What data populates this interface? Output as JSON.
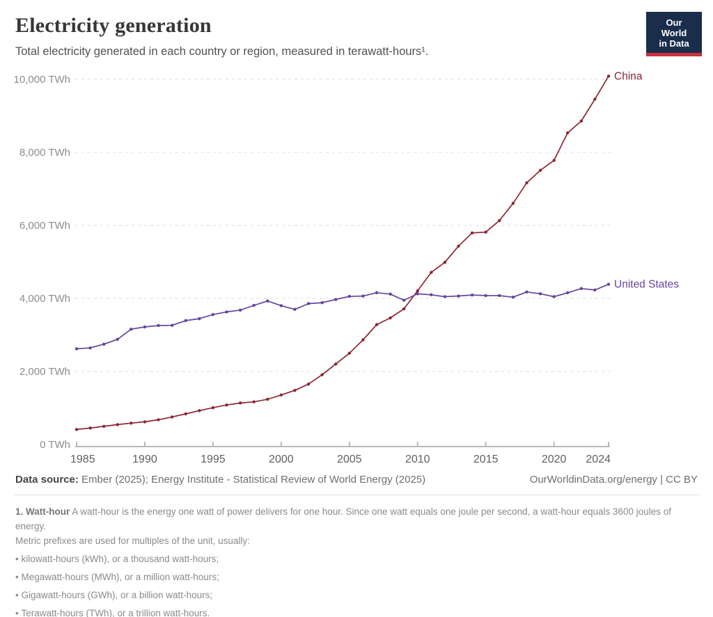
{
  "header": {
    "title": "Electricity generation",
    "subtitle": "Total electricity generated in each country or region, measured in terawatt-hours¹.",
    "logo": {
      "line1": "Our World",
      "line2": "in Data"
    }
  },
  "chart_data": {
    "type": "line",
    "title": "Electricity generation",
    "xlabel": "",
    "ylabel": "",
    "unit": "TWh",
    "grid": "horizontal dashed",
    "legend_position": "end-of-line labels",
    "xlim": [
      1985,
      2024
    ],
    "ylim": [
      0,
      10000
    ],
    "x_ticks": [
      1985,
      1990,
      1995,
      2000,
      2005,
      2010,
      2015,
      2020,
      2024
    ],
    "y_ticks": [
      {
        "value": 0,
        "label": "0 TWh"
      },
      {
        "value": 2000,
        "label": "2,000 TWh"
      },
      {
        "value": 4000,
        "label": "4,000 TWh"
      },
      {
        "value": 6000,
        "label": "6,000 TWh"
      },
      {
        "value": 8000,
        "label": "8,000 TWh"
      },
      {
        "value": 10000,
        "label": "10,000 TWh"
      }
    ],
    "x": [
      1985,
      1986,
      1987,
      1988,
      1989,
      1990,
      1991,
      1992,
      1993,
      1994,
      1995,
      1996,
      1997,
      1998,
      1999,
      2000,
      2001,
      2002,
      2003,
      2004,
      2005,
      2006,
      2007,
      2008,
      2009,
      2010,
      2011,
      2012,
      2013,
      2014,
      2015,
      2016,
      2017,
      2018,
      2019,
      2020,
      2021,
      2022,
      2023,
      2024
    ],
    "series": [
      {
        "name": "China",
        "color": "#8B2632",
        "values": [
          411,
          451,
          497,
          545,
          585,
          621,
          678,
          754,
          839,
          928,
          1007,
          1081,
          1136,
          1167,
          1239,
          1356,
          1481,
          1654,
          1911,
          2203,
          2500,
          2866,
          3282,
          3466,
          3715,
          4207,
          4713,
          4988,
          5432,
          5795,
          5815,
          6133,
          6604,
          7166,
          7509,
          7779,
          8534,
          8858,
          9456,
          10087
        ]
      },
      {
        "name": "United States",
        "color": "#65449B",
        "values": [
          2621,
          2645,
          2747,
          2880,
          3158,
          3219,
          3258,
          3262,
          3393,
          3445,
          3558,
          3630,
          3680,
          3810,
          3930,
          3802,
          3700,
          3858,
          3883,
          3971,
          4055,
          4065,
          4157,
          4119,
          3950,
          4125,
          4100,
          4048,
          4066,
          4094,
          4078,
          4077,
          4034,
          4178,
          4127,
          4048,
          4155,
          4270,
          4231,
          4386
        ]
      }
    ]
  },
  "footer": {
    "datasource_label": "Data source:",
    "datasource_text": " Ember (2025); Energy Institute - Statistical Review of World Energy (2025)",
    "credit": "OurWorldinData.org/energy | CC BY"
  },
  "footnote": {
    "term": "1. Watt-hour",
    "text": " A watt-hour is the energy one watt of power delivers for one hour. Since one watt equals one joule per second, a watt-hour equals 3600 joules of energy.",
    "line2": "Metric prefixes are used for multiples of the unit, usually:",
    "bullets": [
      "kilowatt-hours (kWh), or a thousand watt-hours;",
      "Megawatt-hours (MWh), or a million watt-hours;",
      "Gigawatt-hours (GWh), or a billion watt-hours;",
      "Terawatt-hours (TWh), or a trillion watt-hours."
    ]
  },
  "colors": {
    "china": "#8B2632",
    "united_states": "#65449B",
    "logo_bg": "#1A2E4B",
    "logo_accent": "#C9303E",
    "gridline": "#dcdcdc",
    "axis": "#b9b9b9"
  }
}
